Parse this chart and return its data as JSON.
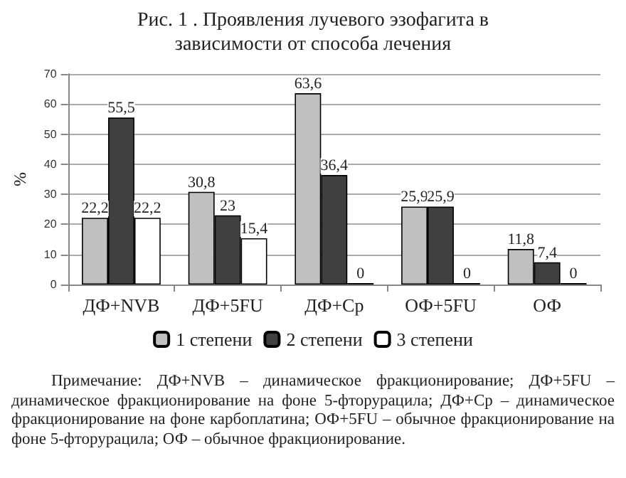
{
  "chart_data": {
    "type": "bar",
    "title": "Рис. 1 . Проявления лучевого эзофагита в зависимости от способа лечения",
    "ylabel": "%",
    "categories": [
      "ДФ+NVB",
      "ДФ+5FU",
      "ДФ+Ср",
      "ОФ+5FU",
      "ОФ"
    ],
    "series": [
      {
        "name": "1 степени",
        "color": "#c0c0c0",
        "values": [
          22.2,
          30.8,
          63.6,
          25.9,
          11.8
        ],
        "value_labels": [
          "22,2",
          "30,8",
          "63,6",
          "25,9",
          "11,8"
        ]
      },
      {
        "name": "2 степени",
        "color": "#404040",
        "values": [
          55.5,
          23,
          36.4,
          25.9,
          7.4
        ],
        "value_labels": [
          "55,5",
          "23",
          "36,4",
          "25,9",
          "7,4"
        ]
      },
      {
        "name": "3 степени",
        "color": "#ffffff",
        "values": [
          22.2,
          15.4,
          0,
          0,
          0
        ],
        "value_labels": [
          "22,2",
          "15,4",
          "0",
          "0",
          "0"
        ]
      }
    ],
    "ylim": [
      0,
      70
    ],
    "yticks": [
      0,
      10,
      20,
      30,
      40,
      50,
      60,
      70
    ],
    "grid": "y",
    "legend": "bottom",
    "annotations": [
      "Примечание: ДФ+NVB – динамическое фракционирование; ДФ+5FU – динамическое фракционирование на фоне 5-фторурацила; ДФ+Ср – динамическое фракционирование на фоне карбоплатина; ОФ+5FU – обычное фракционирование на фоне 5-фторурацила; ОФ – обычное фракционирование."
    ]
  }
}
